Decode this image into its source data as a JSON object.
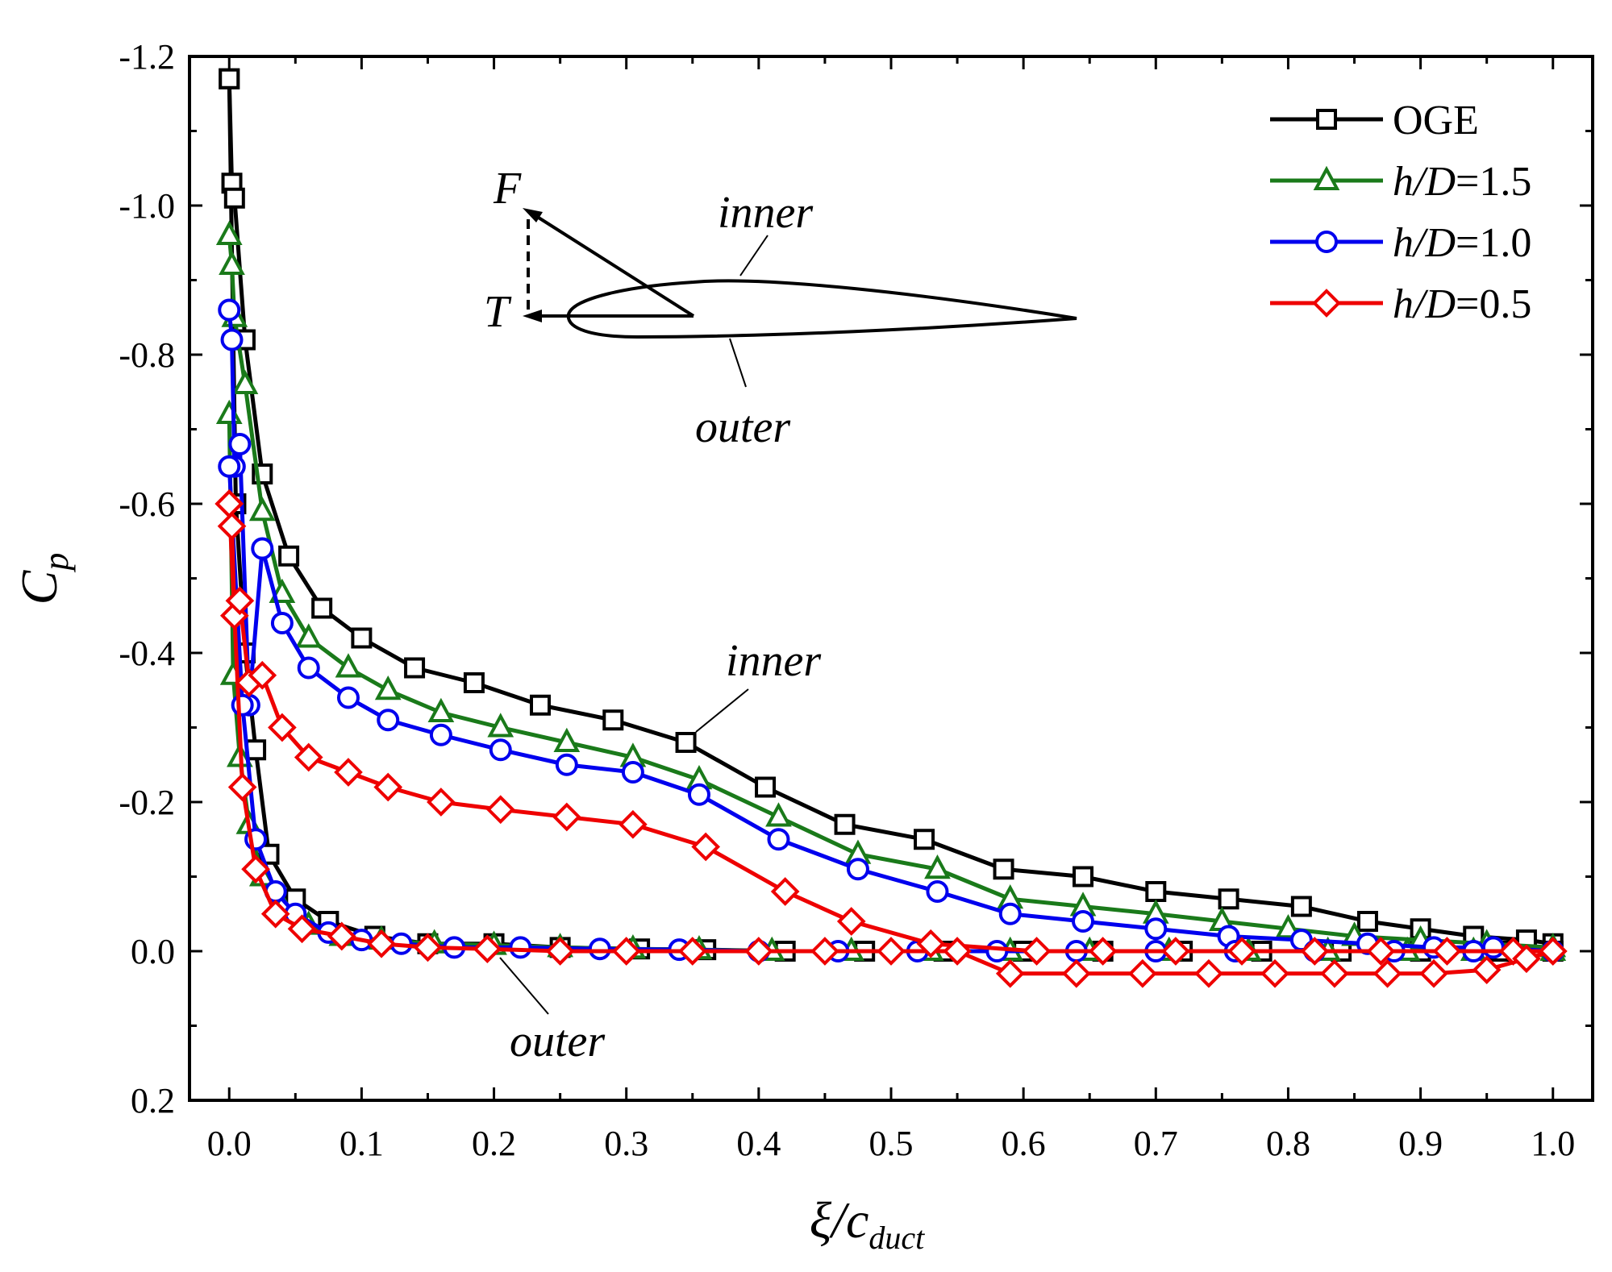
{
  "chart_data": {
    "type": "line",
    "title": "",
    "xlabel": "ξ/c",
    "xlabel_subscript": "duct",
    "ylabel": "C",
    "ylabel_subscript": "p",
    "xlim": [
      -0.03,
      1.03
    ],
    "ylim": [
      0.2,
      -1.2
    ],
    "y_inverted": true,
    "xticks": [
      0.0,
      0.1,
      0.2,
      0.3,
      0.4,
      0.5,
      0.6,
      0.7,
      0.8,
      0.9,
      1.0
    ],
    "xtick_labels": [
      "0.0",
      "0.1",
      "0.2",
      "0.3",
      "0.4",
      "0.5",
      "0.6",
      "0.7",
      "0.8",
      "0.9",
      "1.0"
    ],
    "yticks": [
      -1.2,
      -1.0,
      -0.8,
      -0.6,
      -0.4,
      -0.2,
      0.0,
      0.2
    ],
    "ytick_labels": [
      "-1.2",
      "-1.0",
      "-0.8",
      "-0.6",
      "-0.4",
      "-0.2",
      "0.0",
      "0.2"
    ],
    "grid": false,
    "legend_position": "top-right",
    "series": [
      {
        "name": "OGE",
        "name_italic": "",
        "name_rest": "OGE",
        "color": "#000000",
        "marker": "square",
        "inner": {
          "x": [
            0.0,
            0.002,
            0.004,
            0.012,
            0.025,
            0.045,
            0.07,
            0.1,
            0.14,
            0.185,
            0.235,
            0.29,
            0.345,
            0.405,
            0.465,
            0.525,
            0.585,
            0.645,
            0.7,
            0.755,
            0.81,
            0.86,
            0.9,
            0.94,
            0.98,
            1.0
          ],
          "y": [
            -1.17,
            -1.03,
            -1.01,
            -0.82,
            -0.64,
            -0.53,
            -0.46,
            -0.42,
            -0.38,
            -0.36,
            -0.33,
            -0.31,
            -0.28,
            -0.22,
            -0.17,
            -0.15,
            -0.11,
            -0.1,
            -0.08,
            -0.07,
            -0.06,
            -0.04,
            -0.03,
            -0.02,
            -0.015,
            -0.01
          ]
        },
        "outer": {
          "x": [
            0.0,
            0.005,
            0.012,
            0.02,
            0.03,
            0.05,
            0.075,
            0.11,
            0.15,
            0.2,
            0.25,
            0.31,
            0.36,
            0.42,
            0.48,
            0.54,
            0.6,
            0.66,
            0.72,
            0.78,
            0.84,
            0.9,
            0.96,
            1.0
          ],
          "y": [
            -1.17,
            -0.6,
            -0.4,
            -0.27,
            -0.13,
            -0.07,
            -0.04,
            -0.02,
            -0.01,
            -0.01,
            -0.005,
            -0.003,
            -0.002,
            0.0,
            0.0,
            0.0,
            0.0,
            0.0,
            0.0,
            0.0,
            0.0,
            0.0,
            0.0,
            0.0
          ]
        }
      },
      {
        "name": "h/D=1.5",
        "name_italic": "h/D",
        "name_rest": "=1.5",
        "color": "#1a7a1a",
        "marker": "triangle",
        "inner": {
          "x": [
            0.0,
            0.002,
            0.004,
            0.012,
            0.025,
            0.04,
            0.06,
            0.09,
            0.12,
            0.16,
            0.205,
            0.255,
            0.305,
            0.355,
            0.415,
            0.475,
            0.535,
            0.59,
            0.645,
            0.7,
            0.75,
            0.8,
            0.85,
            0.9,
            0.95,
            1.0
          ],
          "y": [
            -0.96,
            -0.92,
            -0.85,
            -0.76,
            -0.59,
            -0.48,
            -0.42,
            -0.38,
            -0.35,
            -0.32,
            -0.3,
            -0.28,
            -0.26,
            -0.23,
            -0.18,
            -0.13,
            -0.11,
            -0.07,
            -0.06,
            -0.05,
            -0.04,
            -0.03,
            -0.02,
            -0.015,
            -0.01,
            -0.005
          ]
        },
        "outer": {
          "x": [
            0.0,
            0.003,
            0.008,
            0.015,
            0.025,
            0.04,
            0.06,
            0.085,
            0.115,
            0.155,
            0.2,
            0.25,
            0.305,
            0.355,
            0.41,
            0.47,
            0.53,
            0.59,
            0.65,
            0.71,
            0.77,
            0.83,
            0.89,
            0.94,
            1.0
          ],
          "y": [
            -0.72,
            -0.37,
            -0.26,
            -0.17,
            -0.1,
            -0.06,
            -0.035,
            -0.02,
            -0.015,
            -0.01,
            -0.008,
            -0.005,
            -0.003,
            -0.002,
            0.0,
            0.0,
            0.0,
            0.0,
            0.0,
            0.0,
            0.0,
            0.0,
            0.0,
            0.0,
            0.0
          ]
        }
      },
      {
        "name": "h/D=1.0",
        "name_italic": "h/D",
        "name_rest": "=1.0",
        "color": "#0000ee",
        "marker": "circle",
        "inner": {
          "x": [
            0.0,
            0.002,
            0.004,
            0.008,
            0.015,
            0.025,
            0.04,
            0.06,
            0.09,
            0.12,
            0.16,
            0.205,
            0.255,
            0.305,
            0.355,
            0.415,
            0.475,
            0.535,
            0.59,
            0.645,
            0.7,
            0.755,
            0.81,
            0.86,
            0.91,
            0.955,
            1.0
          ],
          "y": [
            -0.86,
            -0.82,
            -0.65,
            -0.68,
            -0.33,
            -0.54,
            -0.44,
            -0.38,
            -0.34,
            -0.31,
            -0.29,
            -0.27,
            -0.25,
            -0.24,
            -0.21,
            -0.15,
            -0.11,
            -0.08,
            -0.05,
            -0.04,
            -0.03,
            -0.02,
            -0.015,
            -0.01,
            -0.005,
            -0.005,
            0.0
          ]
        },
        "outer": {
          "x": [
            0.0,
            0.01,
            0.02,
            0.035,
            0.05,
            0.075,
            0.1,
            0.13,
            0.17,
            0.22,
            0.28,
            0.34,
            0.4,
            0.46,
            0.52,
            0.58,
            0.64,
            0.7,
            0.76,
            0.82,
            0.88,
            0.94,
            1.0
          ],
          "y": [
            -0.65,
            -0.33,
            -0.15,
            -0.08,
            -0.05,
            -0.025,
            -0.015,
            -0.01,
            -0.005,
            -0.005,
            -0.003,
            -0.002,
            0.0,
            0.0,
            0.0,
            0.0,
            0.0,
            0.0,
            0.0,
            0.0,
            0.0,
            0.0,
            0.0
          ]
        }
      },
      {
        "name": "h/D=0.5",
        "name_italic": "h/D",
        "name_rest": "=0.5",
        "color": "#ee0000",
        "marker": "diamond",
        "inner": {
          "x": [
            0.0,
            0.002,
            0.004,
            0.008,
            0.015,
            0.025,
            0.04,
            0.06,
            0.09,
            0.12,
            0.16,
            0.205,
            0.255,
            0.305,
            0.36,
            0.42,
            0.47,
            0.53,
            0.61,
            0.66,
            0.715,
            0.765,
            0.82,
            0.87,
            0.92,
            0.97,
            1.0
          ],
          "y": [
            -0.6,
            -0.57,
            -0.45,
            -0.47,
            -0.36,
            -0.37,
            -0.3,
            -0.26,
            -0.24,
            -0.22,
            -0.2,
            -0.19,
            -0.18,
            -0.17,
            -0.14,
            -0.08,
            -0.04,
            -0.01,
            0.0,
            0.0,
            0.0,
            0.0,
            0.0,
            0.0,
            0.0,
            0.0,
            0.0
          ]
        },
        "outer": {
          "x": [
            0.0,
            0.01,
            0.02,
            0.035,
            0.055,
            0.085,
            0.115,
            0.15,
            0.195,
            0.25,
            0.3,
            0.35,
            0.4,
            0.45,
            0.5,
            0.55,
            0.59,
            0.64,
            0.69,
            0.74,
            0.79,
            0.835,
            0.875,
            0.91,
            0.95,
            0.98,
            1.0
          ],
          "y": [
            -0.6,
            -0.22,
            -0.11,
            -0.05,
            -0.03,
            -0.02,
            -0.01,
            -0.005,
            -0.003,
            0.0,
            0.0,
            0.0,
            0.0,
            0.0,
            0.0,
            0.0,
            0.03,
            0.03,
            0.03,
            0.03,
            0.03,
            0.03,
            0.03,
            0.03,
            0.025,
            0.01,
            0.0
          ]
        }
      }
    ],
    "annotations": {
      "inner_label": "inner",
      "outer_label": "outer",
      "inset_inner_label": "inner",
      "inset_outer_label": "outer",
      "force_label": "F",
      "thrust_label": "T"
    }
  }
}
